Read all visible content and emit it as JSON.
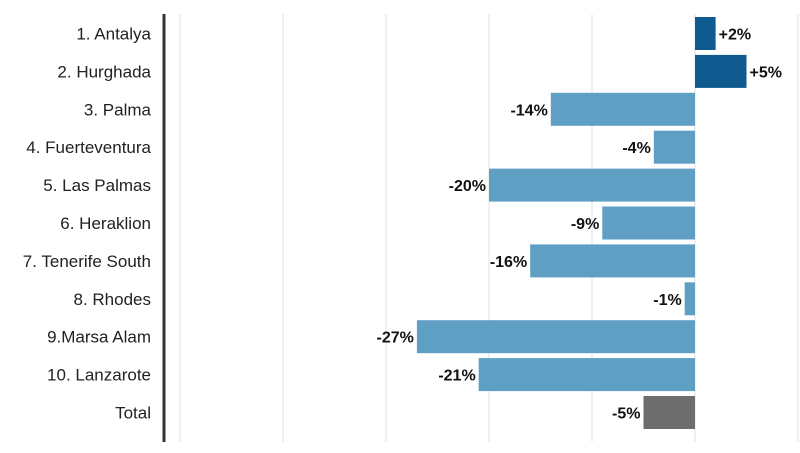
{
  "chart_data": {
    "type": "bar",
    "orientation": "horizontal",
    "title": "",
    "xlabel": "",
    "ylabel": "",
    "categories": [
      "1. Antalya",
      "2. Hurghada",
      "3. Palma",
      "4. Fuerteventura",
      "5. Las Palmas",
      "6. Heraklion",
      "7. Tenerife South",
      "8. Rhodes",
      "9.Marsa Alam",
      "10. Lanzarote",
      "Total"
    ],
    "values": [
      2,
      5,
      -14,
      -4,
      -20,
      -9,
      -16,
      -1,
      -27,
      -21,
      -5
    ],
    "value_labels": [
      "+2%",
      "+5%",
      "-14%",
      "-4%",
      "-20%",
      "-9%",
      "-16%",
      "-1%",
      "-27%",
      "-21%",
      "-5%"
    ],
    "xlim": [
      -50,
      10
    ],
    "gridlines_at": [
      -50,
      -40,
      -30,
      -20,
      -10,
      0,
      10
    ],
    "grid": true,
    "legend": "none",
    "colors": {
      "positive": "#0f5a8e",
      "negative": "#5f9fc4",
      "total": "#6d6d6d",
      "axis": "#333333",
      "grid": "#e2e2e2"
    }
  }
}
